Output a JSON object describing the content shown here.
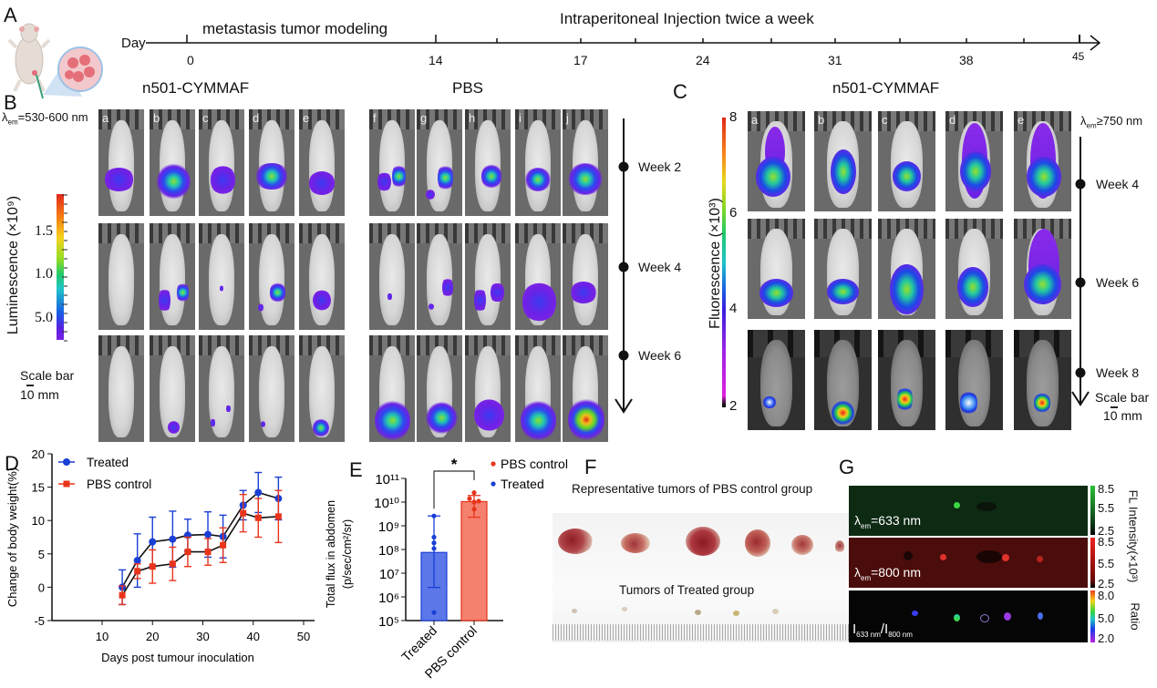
{
  "panel_labels": {
    "A": "A",
    "B": "B",
    "C": "C",
    "D": "D",
    "E": "E",
    "F": "F",
    "G": "G"
  },
  "timeline": {
    "axis_label": "Day",
    "phase1": "metastasis tumor modeling",
    "phase2": "Intraperitoneal Injection twice a week",
    "ticks": [
      "0",
      "14",
      "17",
      "24",
      "31",
      "38",
      "45"
    ]
  },
  "panelB": {
    "group1_title": "n501-CYMMAF",
    "group2_title": "PBS",
    "wavelength_prefix": "λ",
    "wavelength_sub": "em",
    "wavelength_value": "=530-600 nm",
    "mouse_letters_group1": [
      "a",
      "b",
      "c",
      "d",
      "e"
    ],
    "mouse_letters_group2": [
      "f",
      "g",
      "h",
      "i",
      "j"
    ],
    "colorbar_label": "Luminescence (×10⁹)",
    "colorbar_ticks": [
      "1.5",
      "1.0",
      "5.0"
    ],
    "scale_bar_label": "Scale bar",
    "scale_bar_value": "10 mm",
    "weeks": [
      "Week 2",
      "Week 4",
      "Week 6"
    ]
  },
  "panelC": {
    "title": "n501-CYMMAF",
    "wavelength_prefix": "λ",
    "wavelength_sub": "em",
    "wavelength_value": "≥750 nm",
    "mouse_letters": [
      "a",
      "b",
      "c",
      "d",
      "e"
    ],
    "colorbar_label": "Fluorescence (×10³)",
    "colorbar_ticks": [
      "8",
      "6",
      "4",
      "2"
    ],
    "weeks": [
      "Week 4",
      "Week 6",
      "Week 8"
    ],
    "scale_bar_label": "Scale bar",
    "scale_bar_value": "10 mm"
  },
  "panelF": {
    "top_caption": "Representative tumors of PBS control group",
    "bottom_caption": "Tumors of Treated group"
  },
  "panelG": {
    "row1_label_prefix": "λ",
    "row1_label_sub": "em",
    "row1_label_value": "=633 nm",
    "row2_label_prefix": "λ",
    "row2_label_sub": "em",
    "row2_label_value": "=800 nm",
    "row3_label_a": "I",
    "row3_sub_a": "633 nm",
    "row3_label_b": "/I",
    "row3_sub_b": "800 nm",
    "scale1_ticks": [
      "8.5",
      "5.5",
      "2.5"
    ],
    "scale2_ticks": [
      "8.5",
      "5.5",
      "2.5"
    ],
    "scale3_ticks": [
      "8.0",
      "5.0",
      "2.0"
    ],
    "fl_label": "FL Intensity(×10³)",
    "ratio_label": "Ratio",
    "colors": {
      "green": "#1f8a2a",
      "red": "#d0201e"
    }
  },
  "chart_data": [
    {
      "id": "D",
      "type": "line",
      "xlabel": "Days post tumour inoculation",
      "ylabel": "Change of body weight(%)",
      "xlim": [
        0,
        50
      ],
      "ylim": [
        -5,
        20
      ],
      "xticks": [
        10,
        20,
        30,
        40,
        50
      ],
      "yticks": [
        -5,
        0,
        5,
        10,
        15,
        20
      ],
      "legend_position": "top-left",
      "series": [
        {
          "name": "Treated",
          "color": "#1a3fd6",
          "marker": "circle",
          "x": [
            14,
            17,
            20,
            24,
            27,
            31,
            34,
            38,
            41,
            45
          ],
          "y": [
            0,
            4,
            6.8,
            7.2,
            7.8,
            7.9,
            7.6,
            12.3,
            14.2,
            13.3
          ],
          "err": [
            2.6,
            4,
            3.7,
            4.2,
            2.4,
            3.4,
            3.2,
            2.2,
            3.0,
            3.2
          ]
        },
        {
          "name": "PBS control",
          "color": "#e8341c",
          "marker": "square",
          "x": [
            14,
            17,
            20,
            24,
            27,
            31,
            34,
            38,
            41,
            45
          ],
          "y": [
            -1.2,
            2.4,
            3.1,
            3.5,
            5.3,
            5.3,
            6.3,
            11.1,
            10.4,
            10.6
          ],
          "err": [
            1.4,
            1.1,
            2.5,
            2.5,
            2.2,
            2.0,
            2.6,
            2.8,
            2.9,
            3.9
          ]
        }
      ]
    },
    {
      "id": "E",
      "type": "bar",
      "yscale": "log",
      "ylabel": "Total flux in abdomen\n(p/sec/cm²/sr)",
      "ylim_exponent": [
        5,
        11
      ],
      "ytick_labels": [
        "10⁵",
        "10⁶",
        "10⁷",
        "10⁸",
        "10⁹",
        "10¹⁰",
        "10¹¹"
      ],
      "categories": [
        "Treated",
        "PBS control"
      ],
      "values": [
        75000000.0,
        10500000000.0
      ],
      "errors_low": [
        2500000.0,
        2300000000.0
      ],
      "errors_high": [
        2600000000.0,
        19000000000.0
      ],
      "points": [
        [
          2600000000.0,
          330000000.0,
          190000000.0,
          110000000.0,
          220000.0
        ],
        [
          25000000000.0,
          14000000000.0,
          11000000000.0,
          10000000000.0,
          5000000000.0
        ]
      ],
      "colors": [
        "#5b77e8",
        "#f4806e"
      ],
      "point_colors": [
        "#1a3fd6",
        "#e8341c"
      ],
      "legend": [
        "PBS control",
        "Treated"
      ],
      "legend_position": "top-right",
      "significance": "*"
    }
  ]
}
